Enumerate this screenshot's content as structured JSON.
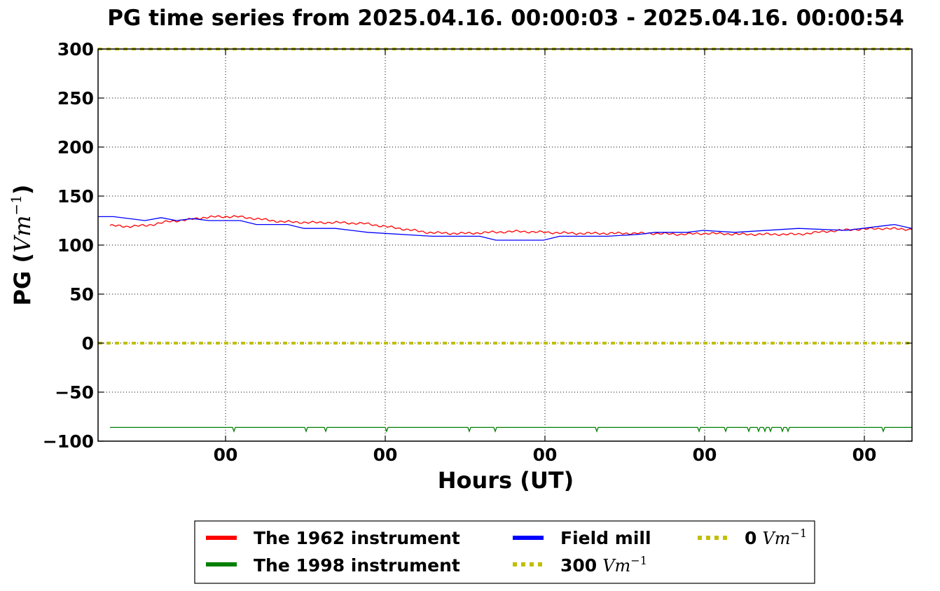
{
  "chart_data": {
    "type": "line",
    "title": "PG time series from 2025.04.16. 00:00:03 - 2025.04.16. 00:00:54",
    "xlabel": "Hours (UT)",
    "ylabel": {
      "prefix": "PG (",
      "unit": "Vm",
      "exp": "−1",
      "suffix": ")"
    },
    "ylim": [
      -100,
      300
    ],
    "xlim": [
      0,
      1162
    ],
    "y_ticks": [
      300,
      250,
      200,
      150,
      100,
      50,
      0,
      -50,
      -100
    ],
    "y_tick_labels": [
      "300",
      "250",
      "200",
      "150",
      "100",
      "50",
      "0",
      "−50",
      "−100"
    ],
    "x_ticks": [
      182,
      410,
      638,
      866,
      1094
    ],
    "x_tick_labels": [
      "00",
      "00",
      "00",
      "00",
      "00"
    ],
    "grid": true,
    "legend": {
      "placement": "bottom-center, below axes",
      "columns": 3,
      "entries": [
        {
          "label": "The 1962 instrument",
          "color": "#ff0000",
          "style": "solid"
        },
        {
          "label": "The 1998 instrument",
          "color": "#008000",
          "style": "solid"
        },
        {
          "label": "Field mill",
          "color": "#0000ff",
          "style": "solid"
        },
        {
          "label": "300",
          "unit": "Vm",
          "exp": "−1",
          "color": "#bfbf00",
          "style": "dotted"
        },
        {
          "label": "0",
          "unit": "Vm",
          "exp": "−1",
          "color": "#bfbf00",
          "style": "dotted"
        }
      ]
    },
    "series": [
      {
        "name": "The 1962 instrument",
        "color": "#ff0000",
        "style": "solid",
        "x": [
          17,
          40,
          70,
          100,
          130,
          150,
          170,
          200,
          225,
          260,
          300,
          340,
          380,
          410,
          440,
          470,
          500,
          530,
          560,
          600,
          640,
          680,
          710,
          740,
          790,
          830,
          870,
          920,
          960,
          1000,
          1040,
          1080,
          1120,
          1162
        ],
        "y": [
          120,
          119,
          120,
          124,
          126,
          128,
          129,
          129,
          127,
          124,
          123,
          123,
          122,
          119,
          116,
          113,
          112,
          112,
          113,
          114,
          113,
          112,
          112,
          112,
          112,
          111,
          112,
          111,
          111,
          111,
          114,
          116,
          117,
          116
        ]
      },
      {
        "name": "Field mill",
        "color": "#0000ff",
        "style": "solid",
        "x": [
          0,
          22,
          67,
          90,
          112,
          135,
          158,
          203,
          226,
          271,
          294,
          339,
          385,
          477,
          545,
          568,
          636,
          659,
          682,
          704,
          727,
          773,
          795,
          841,
          864,
          909,
          1000,
          1068,
          1091,
          1137,
          1162
        ],
        "y": [
          129,
          129,
          125,
          128,
          125,
          127,
          125,
          125,
          121,
          121,
          117,
          117,
          113,
          109,
          109,
          105,
          105,
          109,
          109,
          109,
          109,
          111,
          113,
          113,
          115,
          113,
          117,
          115,
          117,
          121,
          117
        ]
      },
      {
        "name": "The 1998 instrument",
        "color": "#008000",
        "style": "solid",
        "x": [
          17,
          1162
        ],
        "y": [
          -86,
          -86
        ],
        "dips_x": [
          194,
          297,
          325,
          412,
          530,
          567,
          712,
          858,
          896,
          929,
          943,
          952,
          960,
          977,
          985,
          1121
        ],
        "dip_depth": -90
      },
      {
        "name": "300 Vm−1",
        "color": "#bfbf00",
        "style": "dotted",
        "x": [
          0,
          1162
        ],
        "y": [
          300,
          300
        ]
      },
      {
        "name": "0 Vm−1",
        "color": "#bfbf00",
        "style": "dotted",
        "x": [
          0,
          1162
        ],
        "y": [
          0,
          0
        ]
      }
    ]
  }
}
